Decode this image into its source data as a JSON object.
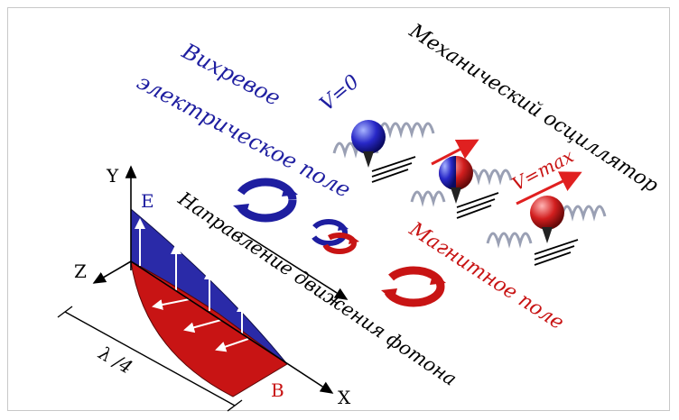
{
  "labels": {
    "vortex_electric_line1": "Вихревое",
    "vortex_electric_line2": "электрическое поле",
    "mechanical_oscillator": "Механический осциллятор",
    "photon_direction": "Направление движения фотона",
    "magnetic_field": "Магнитное поле",
    "v_zero": "V=0",
    "v_max": "V=max",
    "axis_y": "Y",
    "axis_x": "X",
    "axis_z": "Z",
    "e_label": "E",
    "b_label": "B",
    "quarter_wavelength": "λ /4"
  },
  "colors": {
    "electric": "#1e1ea0",
    "magnetic": "#c81414",
    "text_black": "#000000",
    "spring": "#9aa0b4"
  },
  "icons": [
    "vortex-arrow-icon",
    "spring-icon",
    "ball-icon",
    "velocity-arrow-icon",
    "ground-hatch-icon"
  ]
}
